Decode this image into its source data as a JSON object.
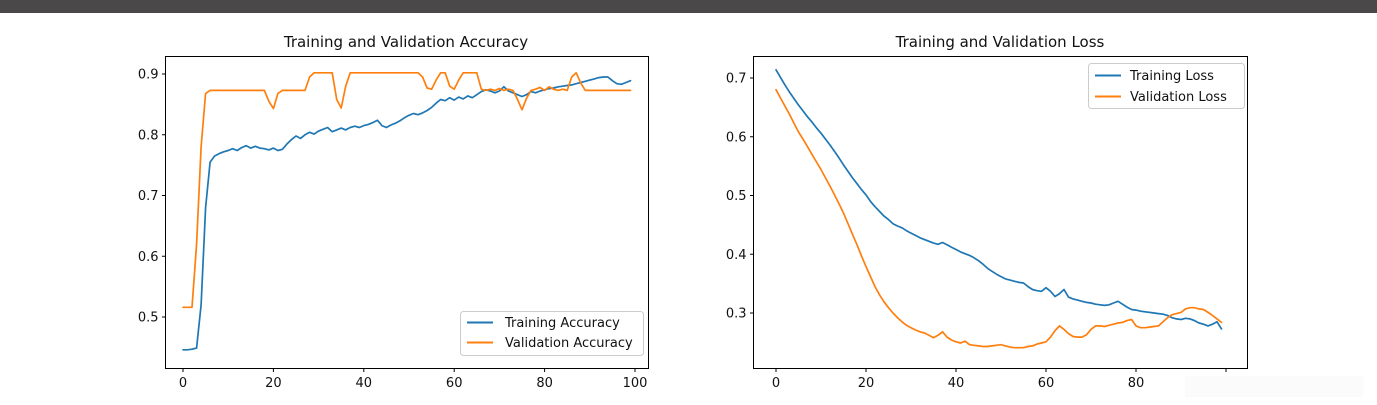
{
  "page": {
    "top_bar_color": "#4a4848",
    "background_color": "#ffffff",
    "artifact_overlay_color": "#fbfbfb"
  },
  "chart_data": [
    {
      "type": "line",
      "title": "Training and Validation Accuracy",
      "xlabel": "",
      "ylabel": "",
      "x_range": [
        0,
        99
      ],
      "xlim": [
        -4,
        103
      ],
      "ylim": [
        0.416,
        0.93
      ],
      "x_ticks": [
        0,
        20,
        40,
        60,
        80,
        100
      ],
      "x_tick_labels": [
        "0",
        "20",
        "40",
        "60",
        "80",
        "100"
      ],
      "y_ticks": [
        0.5,
        0.6,
        0.7,
        0.8,
        0.9
      ],
      "y_tick_labels": [
        "0.5",
        "0.6",
        "0.7",
        "0.8",
        "0.9"
      ],
      "grid": false,
      "legend_position": "lower right",
      "series": [
        {
          "name": "Training Accuracy",
          "color": "#1f77b4",
          "values": [
            0.446,
            0.446,
            0.447,
            0.449,
            0.52,
            0.68,
            0.755,
            0.765,
            0.769,
            0.772,
            0.774,
            0.777,
            0.774,
            0.779,
            0.782,
            0.778,
            0.781,
            0.778,
            0.777,
            0.775,
            0.778,
            0.774,
            0.776,
            0.785,
            0.792,
            0.798,
            0.794,
            0.8,
            0.804,
            0.801,
            0.806,
            0.809,
            0.812,
            0.805,
            0.808,
            0.811,
            0.808,
            0.812,
            0.814,
            0.812,
            0.815,
            0.817,
            0.82,
            0.824,
            0.815,
            0.812,
            0.816,
            0.819,
            0.823,
            0.828,
            0.832,
            0.835,
            0.833,
            0.836,
            0.84,
            0.845,
            0.852,
            0.858,
            0.856,
            0.861,
            0.857,
            0.862,
            0.859,
            0.864,
            0.861,
            0.866,
            0.871,
            0.874,
            0.872,
            0.869,
            0.872,
            0.879,
            0.872,
            0.869,
            0.866,
            0.863,
            0.866,
            0.871,
            0.869,
            0.872,
            0.874,
            0.876,
            0.877,
            0.879,
            0.88,
            0.881,
            0.882,
            0.884,
            0.886,
            0.888,
            0.89,
            0.892,
            0.894,
            0.895,
            0.895,
            0.889,
            0.884,
            0.883,
            0.886,
            0.889
          ]
        },
        {
          "name": "Validation Accuracy",
          "color": "#ff7f0e",
          "values": [
            0.516,
            0.516,
            0.516,
            0.62,
            0.78,
            0.868,
            0.873,
            0.873,
            0.873,
            0.873,
            0.873,
            0.873,
            0.873,
            0.873,
            0.873,
            0.873,
            0.873,
            0.873,
            0.873,
            0.855,
            0.843,
            0.868,
            0.873,
            0.873,
            0.873,
            0.873,
            0.873,
            0.873,
            0.895,
            0.902,
            0.902,
            0.902,
            0.902,
            0.902,
            0.858,
            0.844,
            0.88,
            0.902,
            0.902,
            0.902,
            0.902,
            0.902,
            0.902,
            0.902,
            0.902,
            0.902,
            0.902,
            0.902,
            0.902,
            0.902,
            0.902,
            0.902,
            0.902,
            0.895,
            0.877,
            0.875,
            0.89,
            0.902,
            0.902,
            0.88,
            0.875,
            0.89,
            0.902,
            0.902,
            0.902,
            0.902,
            0.875,
            0.873,
            0.875,
            0.873,
            0.876,
            0.873,
            0.875,
            0.873,
            0.858,
            0.841,
            0.86,
            0.873,
            0.875,
            0.878,
            0.873,
            0.879,
            0.875,
            0.873,
            0.875,
            0.873,
            0.895,
            0.902,
            0.885,
            0.873,
            0.873,
            0.873,
            0.873,
            0.873,
            0.873,
            0.873,
            0.873,
            0.873,
            0.873,
            0.873
          ]
        }
      ]
    },
    {
      "type": "line",
      "title": "Training and Validation Loss",
      "xlabel": "",
      "ylabel": "",
      "x_range": [
        0,
        99
      ],
      "xlim": [
        -5.1,
        104.7
      ],
      "ylim": [
        0.206,
        0.737
      ],
      "x_ticks": [
        0,
        20,
        40,
        60,
        80,
        100
      ],
      "x_tick_labels": [
        "0",
        "20",
        "40",
        "60",
        "80",
        ""
      ],
      "y_ticks": [
        0.3,
        0.4,
        0.5,
        0.6,
        0.7
      ],
      "y_tick_labels": [
        "0.3",
        "0.4",
        "0.5",
        "0.6",
        "0.7"
      ],
      "grid": false,
      "legend_position": "upper right",
      "series": [
        {
          "name": "Training Loss",
          "color": "#1f77b4",
          "values": [
            0.714,
            0.701,
            0.688,
            0.676,
            0.665,
            0.654,
            0.644,
            0.634,
            0.625,
            0.615,
            0.606,
            0.596,
            0.586,
            0.575,
            0.564,
            0.552,
            0.541,
            0.53,
            0.52,
            0.51,
            0.501,
            0.49,
            0.481,
            0.473,
            0.465,
            0.459,
            0.452,
            0.448,
            0.445,
            0.44,
            0.436,
            0.432,
            0.428,
            0.425,
            0.422,
            0.419,
            0.417,
            0.42,
            0.416,
            0.412,
            0.408,
            0.404,
            0.401,
            0.398,
            0.394,
            0.389,
            0.383,
            0.376,
            0.371,
            0.366,
            0.362,
            0.358,
            0.356,
            0.354,
            0.352,
            0.351,
            0.345,
            0.34,
            0.338,
            0.337,
            0.343,
            0.337,
            0.328,
            0.333,
            0.34,
            0.327,
            0.324,
            0.322,
            0.32,
            0.318,
            0.317,
            0.315,
            0.314,
            0.313,
            0.314,
            0.317,
            0.32,
            0.315,
            0.31,
            0.306,
            0.305,
            0.303,
            0.302,
            0.301,
            0.3,
            0.299,
            0.298,
            0.296,
            0.292,
            0.29,
            0.289,
            0.291,
            0.29,
            0.287,
            0.283,
            0.281,
            0.278,
            0.281,
            0.285,
            0.273
          ]
        },
        {
          "name": "Validation Loss",
          "color": "#ff7f0e",
          "values": [
            0.68,
            0.666,
            0.652,
            0.638,
            0.623,
            0.608,
            0.596,
            0.583,
            0.57,
            0.557,
            0.544,
            0.53,
            0.516,
            0.501,
            0.486,
            0.47,
            0.452,
            0.434,
            0.416,
            0.397,
            0.379,
            0.362,
            0.345,
            0.331,
            0.319,
            0.309,
            0.3,
            0.292,
            0.285,
            0.279,
            0.275,
            0.271,
            0.268,
            0.266,
            0.262,
            0.258,
            0.262,
            0.268,
            0.259,
            0.254,
            0.251,
            0.249,
            0.252,
            0.246,
            0.245,
            0.244,
            0.243,
            0.243,
            0.244,
            0.245,
            0.246,
            0.244,
            0.242,
            0.241,
            0.241,
            0.241,
            0.243,
            0.244,
            0.247,
            0.249,
            0.251,
            0.259,
            0.27,
            0.278,
            0.272,
            0.265,
            0.26,
            0.259,
            0.259,
            0.263,
            0.272,
            0.278,
            0.278,
            0.277,
            0.279,
            0.281,
            0.283,
            0.284,
            0.287,
            0.289,
            0.278,
            0.275,
            0.275,
            0.276,
            0.277,
            0.278,
            0.285,
            0.292,
            0.297,
            0.299,
            0.301,
            0.307,
            0.309,
            0.309,
            0.307,
            0.306,
            0.301,
            0.296,
            0.29,
            0.284
          ]
        }
      ]
    }
  ]
}
